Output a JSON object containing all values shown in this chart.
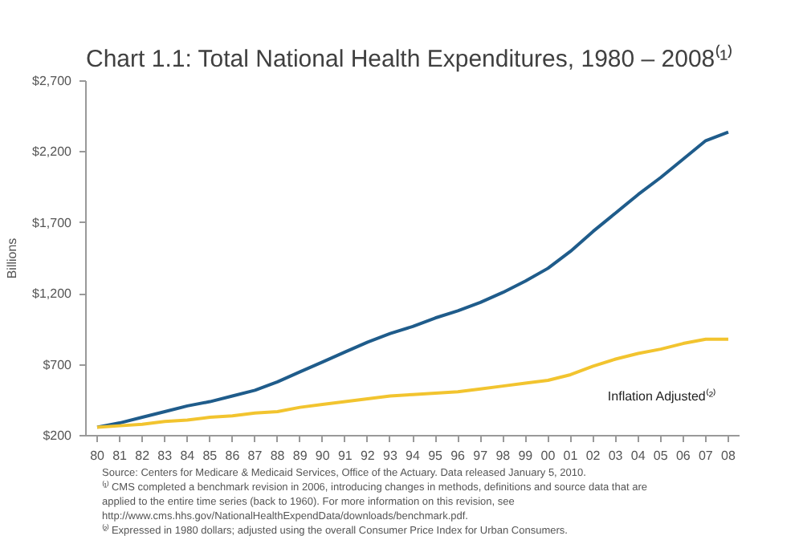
{
  "chart_data": {
    "type": "line",
    "title": "Chart 1.1: Total National Health Expenditures, 1980 – 2008⁽¹⁾",
    "ylabel": "Billions",
    "categories": [
      "80",
      "81",
      "82",
      "83",
      "84",
      "85",
      "86",
      "87",
      "88",
      "89",
      "90",
      "91",
      "92",
      "93",
      "94",
      "95",
      "96",
      "97",
      "98",
      "99",
      "00",
      "01",
      "02",
      "03",
      "04",
      "05",
      "06",
      "07",
      "08"
    ],
    "series": [
      {
        "color": "#1f5c8b",
        "values": [
          260,
          290,
          330,
          370,
          410,
          440,
          480,
          520,
          580,
          650,
          720,
          790,
          860,
          920,
          970,
          1030,
          1080,
          1140,
          1210,
          1290,
          1380,
          1500,
          1640,
          1770,
          1900,
          2020,
          2150,
          2280,
          2340
        ]
      },
      {
        "name": "Inflation Adjusted⁽²⁾",
        "color": "#f2c42f",
        "values": [
          260,
          270,
          280,
          300,
          310,
          330,
          340,
          360,
          370,
          400,
          420,
          440,
          460,
          480,
          490,
          500,
          510,
          530,
          550,
          570,
          590,
          630,
          690,
          740,
          780,
          810,
          850,
          880,
          880
        ]
      }
    ],
    "ylim": [
      200,
      2700
    ],
    "yticks": [
      {
        "value": 200,
        "label": "$200"
      },
      {
        "value": 700,
        "label": "$700"
      },
      {
        "value": 1200,
        "label": "$1,200"
      },
      {
        "value": 1700,
        "label": "$1,700"
      },
      {
        "value": 2200,
        "label": "$2,200"
      },
      {
        "value": 2700,
        "label": "$2,700"
      }
    ],
    "grid": false,
    "line_style": "solid",
    "marker": "none",
    "annotations": [
      "Source: Centers for Medicare & Medicaid Services, Office of the Actuary.  Data released January 5, 2010.",
      "⁽¹⁾  CMS completed a benchmark revision in 2006, introducing changes in methods, definitions and source data that are applied to the entire time series (back to 1960).  For more information on this revision, see http://www.cms.hhs.gov/NationalHealthExpendData/downloads/benchmark.pdf.",
      "⁽²⁾  Expressed in 1980 dollars; adjusted using the overall Consumer Price Index for Urban Consumers."
    ]
  }
}
